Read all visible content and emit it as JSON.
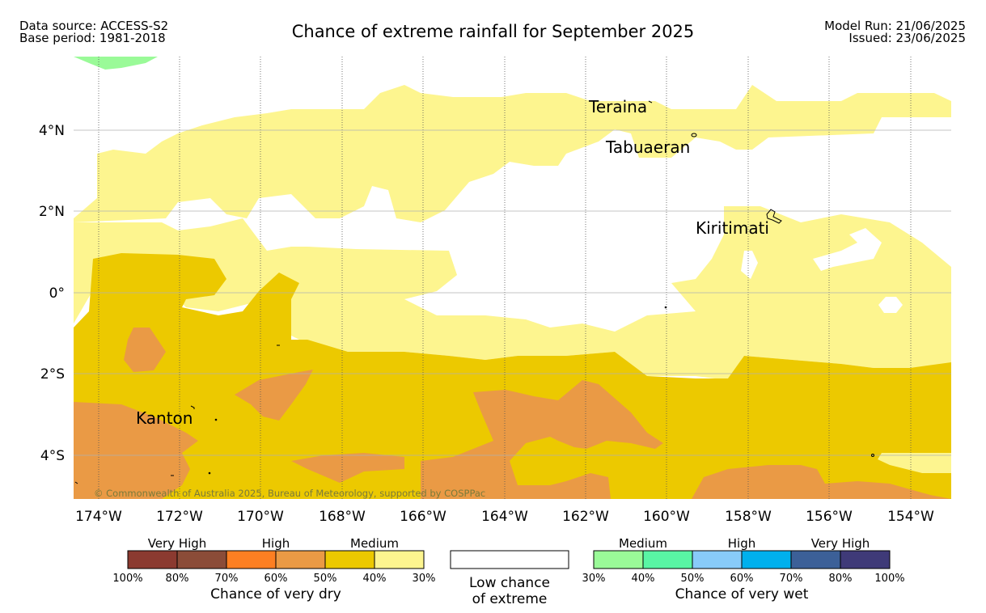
{
  "header": {
    "data_source": "Data source: ACCESS-S2",
    "base_period": "Base period: 1981-2018",
    "title": "Chance of extreme rainfall for September 2025",
    "model_run": "Model Run: 21/06/2025",
    "issued": "Issued: 23/06/2025"
  },
  "map": {
    "lon_ticks": [
      "174°W",
      "172°W",
      "170°W",
      "168°W",
      "166°W",
      "164°W",
      "162°W",
      "160°W",
      "158°W",
      "156°W",
      "154°W"
    ],
    "lat_ticks": [
      "4°N",
      "2°N",
      "0°",
      "2°S",
      "4°S"
    ],
    "places": {
      "teraina": "Teraina",
      "tabuaeran": "Tabuaeran",
      "kiritimati": "Kiritimati",
      "kanton": "Kanton"
    },
    "copyright": "© Commonwealth of Australia 2025, Bureau of Meteorology, supported by COSPPac",
    "colors": {
      "dry_medium_30_40": "#fdf58f",
      "dry_medium_40_50": "#ecc900",
      "dry_high_50_60": "#ea9a45",
      "wet_medium_30_40": "#9afa98",
      "low_chance": "#ffffff"
    }
  },
  "legend": {
    "dry": {
      "heads": [
        "Very High",
        "High",
        "Medium"
      ],
      "colors": [
        "#8b3a30",
        "#8b4c38",
        "#fd7f22",
        "#ea9a45",
        "#ecc900",
        "#fdf58f"
      ],
      "ticks": [
        "100%",
        "80%",
        "70%",
        "60%",
        "50%",
        "40%",
        "30%"
      ],
      "caption": "Chance of very dry"
    },
    "low": {
      "color": "#ffffff",
      "caption_line1": "Low chance",
      "caption_line2": "of extreme"
    },
    "wet": {
      "heads": [
        "Medium",
        "High",
        "Very High"
      ],
      "colors": [
        "#9afa98",
        "#59f5a4",
        "#88cbf9",
        "#00b0ed",
        "#3c6098",
        "#3f3a78"
      ],
      "ticks": [
        "30%",
        "40%",
        "50%",
        "60%",
        "70%",
        "80%",
        "100%"
      ],
      "caption": "Chance of very wet"
    }
  }
}
